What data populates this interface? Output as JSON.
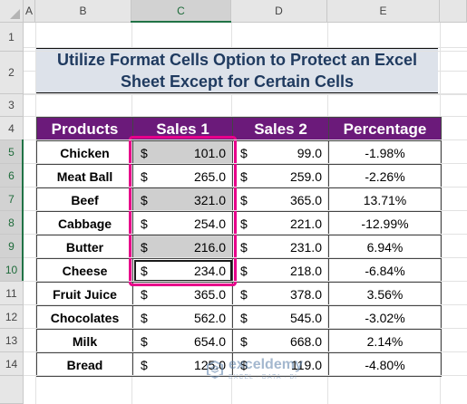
{
  "columns": [
    "A",
    "B",
    "C",
    "D",
    "E"
  ],
  "rows": [
    "1",
    "2",
    "3",
    "4",
    "5",
    "6",
    "7",
    "8",
    "9",
    "10",
    "11",
    "12",
    "13",
    "14"
  ],
  "title": "Utilize Format Cells Option to Protect an Excel Sheet Except for Certain Cells",
  "table": {
    "headers": [
      "Products",
      "Sales 1",
      "Sales 2",
      "Percentage"
    ],
    "currency": "$",
    "rows": [
      {
        "product": "Chicken",
        "sales1": "101.0",
        "sales2": "99.0",
        "pct": "-1.98%"
      },
      {
        "product": "Meat Ball",
        "sales1": "265.0",
        "sales2": "259.0",
        "pct": "-2.26%"
      },
      {
        "product": "Beef",
        "sales1": "321.0",
        "sales2": "365.0",
        "pct": "13.71%"
      },
      {
        "product": "Cabbage",
        "sales1": "254.0",
        "sales2": "221.0",
        "pct": "-12.99%"
      },
      {
        "product": "Butter",
        "sales1": "216.0",
        "sales2": "231.0",
        "pct": "6.94%"
      },
      {
        "product": "Cheese",
        "sales1": "234.0",
        "sales2": "218.0",
        "pct": "-6.84%"
      },
      {
        "product": "Fruit Juice",
        "sales1": "365.0",
        "sales2": "378.0",
        "pct": "3.56%"
      },
      {
        "product": "Chocolates",
        "sales1": "562.0",
        "sales2": "545.0",
        "pct": "-3.02%"
      },
      {
        "product": "Milk",
        "sales1": "654.0",
        "sales2": "668.0",
        "pct": "2.14%"
      },
      {
        "product": "Bread",
        "sales1": "125.0",
        "sales2": "119.0",
        "pct": "-4.80%"
      }
    ]
  },
  "watermark": {
    "name": "exceldemy",
    "tagline": "EXCEL · DATA · BI"
  },
  "colors": {
    "header_fill": "#6b1a7a",
    "title_fill": "#dde2ea",
    "selection_border": "#e7008a",
    "shaded_cell": "#cfcfcf"
  }
}
